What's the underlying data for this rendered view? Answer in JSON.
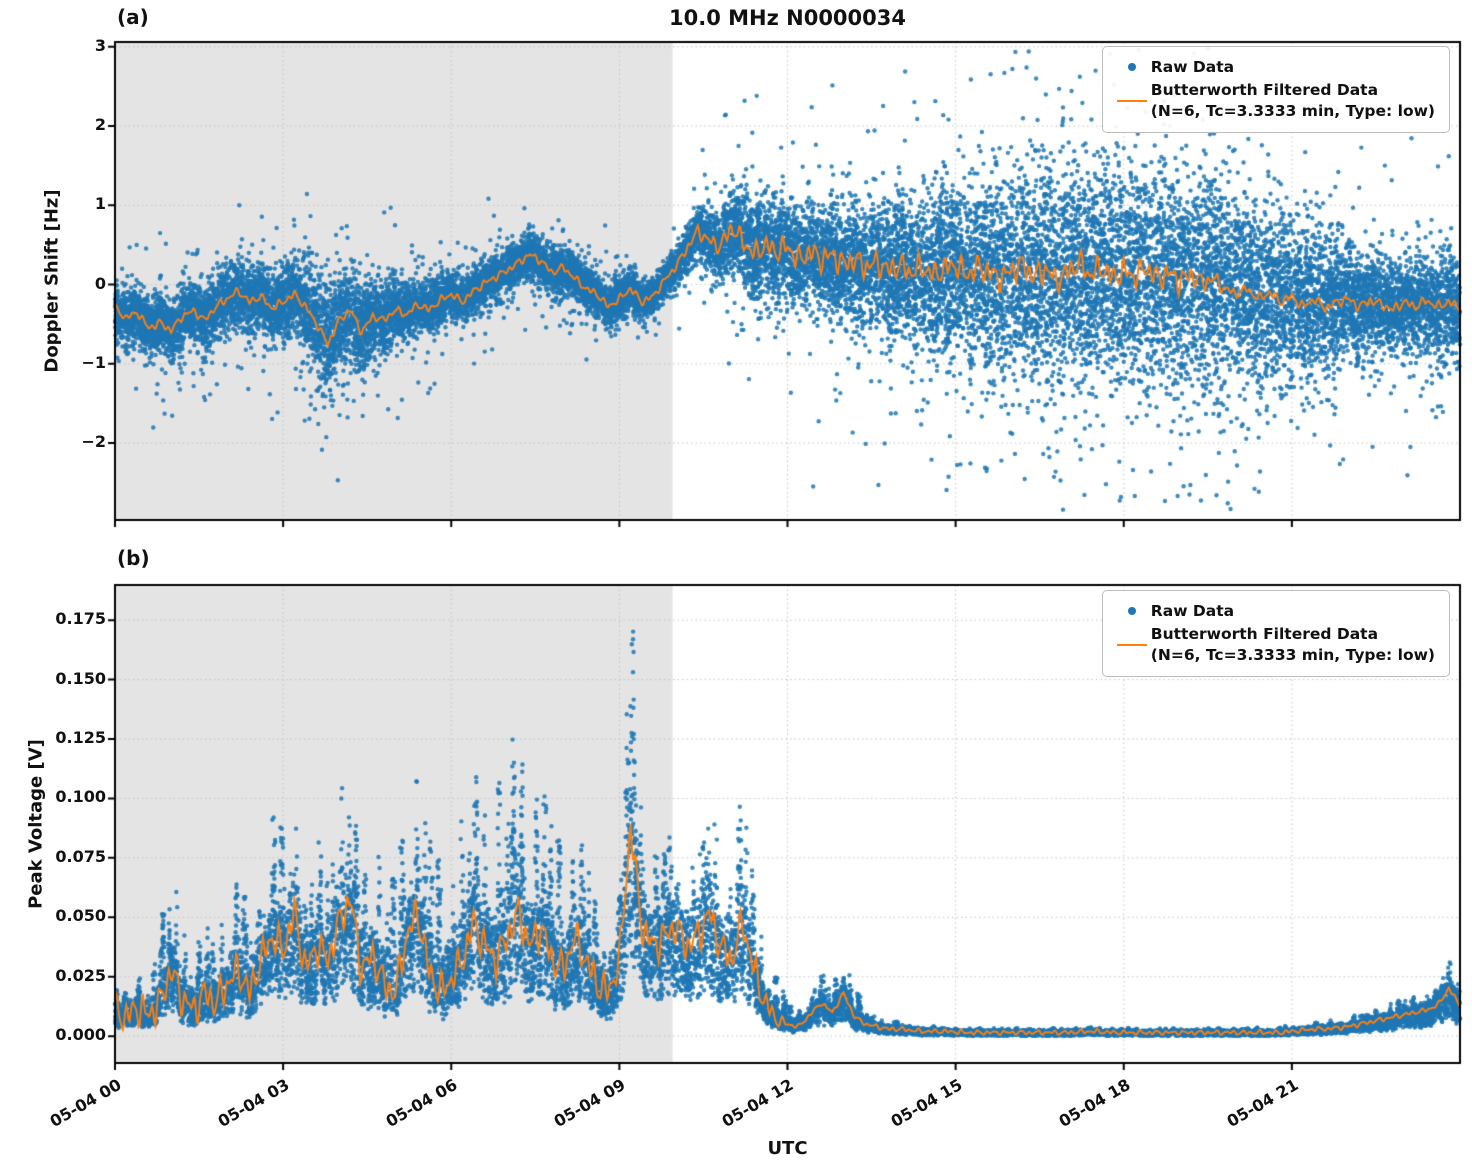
{
  "figure": {
    "title": "10.0 MHz N0000034",
    "panel_a_label": "(a)",
    "panel_b_label": "(b)",
    "xlabel": "UTC",
    "colors": {
      "raw": "#1f77b4",
      "filtered": "#ff7f0e",
      "shade": "#e4e4e4",
      "grid": "#c4c4c4",
      "spine": "#000000"
    },
    "legend": {
      "raw_label": "Raw Data",
      "filtered_label": "Butterworth Filtered Data",
      "filtered_sublabel": "(N=6, Tc=3.3333 min, Type: low)"
    }
  },
  "chart_data": [
    {
      "id": "a",
      "type": "scatter",
      "title": "10.0 MHz N0000034",
      "ylabel": "Doppler Shift [Hz]",
      "xlabel": "",
      "x_unit": "hours since 05-04 00:00 UTC",
      "xlim": [
        0,
        24
      ],
      "ylim": [
        -2.97,
        3.06
      ],
      "yticks": [
        3,
        2,
        1,
        0,
        -1,
        -2
      ],
      "ytick_labels": [
        "3",
        "2",
        "1",
        "0",
        "−1",
        "−2"
      ],
      "xticks": {
        "positions": [
          0,
          3,
          6,
          9,
          12,
          15,
          18,
          21
        ],
        "labels": [
          "05-04 00",
          "05-04 03",
          "05-04 06",
          "05-04 09",
          "05-04 12",
          "05-04 15",
          "05-04 18",
          "05-04 21"
        ]
      },
      "show_xtick_labels": false,
      "grid": true,
      "legend_position": "upper right",
      "shaded_region": {
        "x0_hours": 0,
        "x1_hours": 9.95
      },
      "series": [
        {
          "name": "Raw Data",
          "kind": "scatter",
          "model": "gauss_around_line",
          "n_points": 22000,
          "sigma_t": [
            0,
            1,
            2,
            3,
            3.8,
            4.3,
            5,
            6,
            7,
            8,
            9,
            9.8,
            10.3,
            11,
            11.7,
            12.3,
            13,
            13.7,
            14.3,
            15,
            16,
            17,
            18,
            19,
            20,
            20.7,
            21.3,
            22,
            22.7,
            23.3,
            24
          ],
          "sigma_v": [
            0.18,
            0.2,
            0.2,
            0.22,
            0.35,
            0.3,
            0.2,
            0.15,
            0.14,
            0.15,
            0.14,
            0.1,
            0.15,
            0.28,
            0.33,
            0.3,
            0.35,
            0.42,
            0.5,
            0.58,
            0.65,
            0.7,
            0.7,
            0.68,
            0.62,
            0.58,
            0.5,
            0.35,
            0.28,
            0.3,
            0.35
          ],
          "tail_fraction": 0.025
        },
        {
          "name": "Butterworth Filtered Data (N=6, Tc=3.3333 min, Type: low)",
          "kind": "line",
          "t0": 0,
          "dt": 0.2,
          "values": [
            -0.3,
            -0.42,
            -0.35,
            -0.55,
            -0.48,
            -0.58,
            -0.4,
            -0.33,
            -0.45,
            -0.28,
            -0.18,
            -0.08,
            -0.22,
            -0.15,
            -0.3,
            -0.22,
            -0.12,
            -0.28,
            -0.5,
            -0.75,
            -0.45,
            -0.32,
            -0.6,
            -0.4,
            -0.45,
            -0.32,
            -0.38,
            -0.25,
            -0.32,
            -0.2,
            -0.12,
            -0.22,
            -0.08,
            0.02,
            0.1,
            0.18,
            0.28,
            0.38,
            0.3,
            0.15,
            0.22,
            0.08,
            -0.05,
            -0.12,
            -0.28,
            -0.18,
            -0.05,
            -0.22,
            -0.15,
            0.05,
            0.22,
            0.45,
            0.68,
            0.55,
            0.48,
            0.72,
            0.55,
            0.38,
            0.5,
            0.42,
            0.48,
            0.3,
            0.42,
            0.32,
            0.38,
            0.25,
            0.32,
            0.22,
            0.28,
            0.18,
            0.25,
            0.15,
            0.22,
            0.12,
            0.2,
            0.25,
            0.12,
            0.22,
            0.15,
            0.08,
            0.18,
            0.25,
            0.1,
            0.2,
            0.05,
            0.15,
            0.28,
            0.12,
            0.22,
            0.08,
            0.18,
            0.1,
            0.22,
            0.08,
            0.15,
            0.05,
            0.12,
            0.02,
            0.08,
            -0.05,
            -0.12,
            -0.05,
            -0.18,
            -0.1,
            -0.22,
            -0.15,
            -0.28,
            -0.18,
            -0.3,
            -0.22,
            -0.18,
            -0.28,
            -0.2,
            -0.25,
            -0.32,
            -0.22,
            -0.28,
            -0.2,
            -0.28,
            -0.22,
            -0.3
          ],
          "jitter_t": [
            0,
            10,
            11,
            12,
            19,
            20,
            24
          ],
          "jitter_v": [
            0.04,
            0.04,
            0.1,
            0.13,
            0.13,
            0.05,
            0.05
          ]
        }
      ]
    },
    {
      "id": "b",
      "type": "scatter",
      "title": "",
      "ylabel": "Peak Voltage [V]",
      "xlabel": "UTC",
      "x_unit": "hours since 05-04 00:00 UTC",
      "xlim": [
        0,
        24
      ],
      "ylim": [
        -0.0113,
        0.1898
      ],
      "yticks": [
        0.0,
        0.025,
        0.05,
        0.075,
        0.1,
        0.125,
        0.15,
        0.175
      ],
      "ytick_labels": [
        "0.000",
        "0.025",
        "0.050",
        "0.075",
        "0.100",
        "0.125",
        "0.150",
        "0.175"
      ],
      "xticks": {
        "positions": [
          0,
          3,
          6,
          9,
          12,
          15,
          18,
          21
        ],
        "labels": [
          "05-04 00",
          "05-04 03",
          "05-04 06",
          "05-04 09",
          "05-04 12",
          "05-04 15",
          "05-04 18",
          "05-04 21"
        ]
      },
      "show_xtick_labels": true,
      "grid": true,
      "legend_position": "upper right",
      "shaded_region": {
        "x0_hours": 0,
        "x1_hours": 9.95
      },
      "series": [
        {
          "name": "Raw Data",
          "kind": "scatter",
          "model": "spikes_above_line",
          "n_points": 15000,
          "amp_t": [
            0,
            0.5,
            1,
            1.5,
            2,
            2.5,
            3,
            3.5,
            4,
            4.5,
            5,
            5.5,
            6,
            6.5,
            7,
            7.5,
            8,
            8.5,
            9,
            9.2,
            9.5,
            10,
            10.5,
            11,
            11.5,
            12,
            12.5,
            13,
            13.5,
            14,
            15,
            16,
            17,
            18,
            19,
            20,
            21,
            22,
            23,
            23.5,
            24
          ],
          "amp_v": [
            0.006,
            0.01,
            0.035,
            0.02,
            0.025,
            0.03,
            0.045,
            0.03,
            0.04,
            0.035,
            0.04,
            0.045,
            0.045,
            0.05,
            0.065,
            0.045,
            0.045,
            0.03,
            0.025,
            0.08,
            0.035,
            0.028,
            0.032,
            0.045,
            0.025,
            0.008,
            0.006,
            0.014,
            0.004,
            0.002,
            0.001,
            0.001,
            0.001,
            0.001,
            0.001,
            0.001,
            0.0015,
            0.002,
            0.004,
            0.006,
            0.008
          ],
          "max_value": 0.185
        },
        {
          "name": "Butterworth Filtered Data (N=6, Tc=3.3333 min, Type: low)",
          "kind": "line",
          "t0": 0,
          "dt": 0.2,
          "values": [
            0.01,
            0.008,
            0.012,
            0.009,
            0.014,
            0.028,
            0.016,
            0.011,
            0.018,
            0.014,
            0.022,
            0.028,
            0.018,
            0.032,
            0.042,
            0.036,
            0.052,
            0.028,
            0.038,
            0.032,
            0.048,
            0.058,
            0.028,
            0.034,
            0.022,
            0.018,
            0.042,
            0.052,
            0.028,
            0.018,
            0.024,
            0.032,
            0.048,
            0.038,
            0.032,
            0.042,
            0.052,
            0.038,
            0.046,
            0.032,
            0.028,
            0.042,
            0.032,
            0.022,
            0.018,
            0.032,
            0.088,
            0.046,
            0.038,
            0.042,
            0.046,
            0.038,
            0.042,
            0.052,
            0.038,
            0.032,
            0.048,
            0.028,
            0.014,
            0.007,
            0.005,
            0.004,
            0.009,
            0.014,
            0.01,
            0.018,
            0.008,
            0.005,
            0.004,
            0.003,
            0.003,
            0.0025,
            0.002,
            0.002,
            0.002,
            0.0018,
            0.0015,
            0.0015,
            0.0015,
            0.0015,
            0.0015,
            0.0015,
            0.0015,
            0.0015,
            0.0015,
            0.0015,
            0.0018,
            0.002,
            0.0018,
            0.0015,
            0.0015,
            0.0015,
            0.0015,
            0.0015,
            0.0015,
            0.0015,
            0.0015,
            0.0015,
            0.0015,
            0.0015,
            0.0015,
            0.0015,
            0.0015,
            0.0015,
            0.0015,
            0.002,
            0.0025,
            0.003,
            0.003,
            0.0035,
            0.004,
            0.005,
            0.006,
            0.007,
            0.008,
            0.009,
            0.01,
            0.011,
            0.013,
            0.02,
            0.013
          ],
          "jitter_t": [
            0,
            11.5,
            12,
            24
          ],
          "jitter_v": [
            0.006,
            0.006,
            0.0008,
            0.0008
          ]
        }
      ]
    }
  ]
}
